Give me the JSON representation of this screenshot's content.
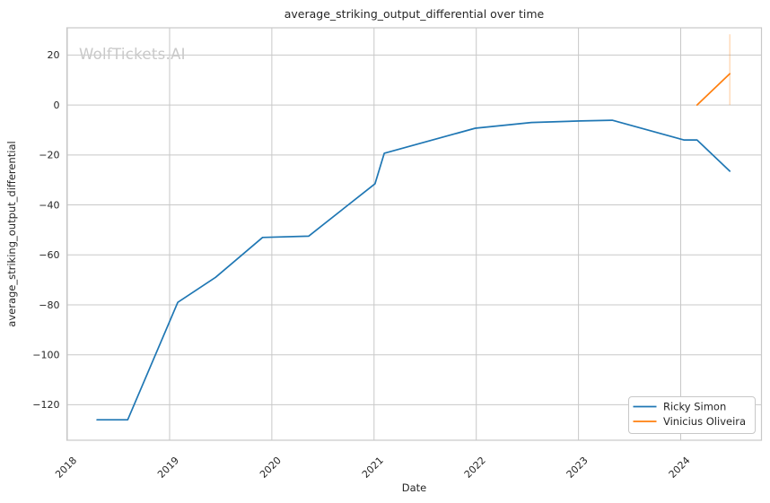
{
  "chart_data": {
    "type": "line",
    "title": "average_striking_output_differential over time",
    "xlabel": "Date",
    "ylabel": "average_striking_output_differential",
    "watermark": "WolfTickets.AI",
    "grid": true,
    "legend_position": "lower right",
    "xlim": [
      2017.995,
      2024.79
    ],
    "ylim": [
      -134.2,
      30.9
    ],
    "x_ticks": [
      2018,
      2019,
      2020,
      2021,
      2022,
      2023,
      2024
    ],
    "x_tick_labels": [
      "2018",
      "2019",
      "2020",
      "2021",
      "2022",
      "2023",
      "2024"
    ],
    "y_ticks": [
      20,
      0,
      -20,
      -40,
      -60,
      -80,
      -100,
      -120
    ],
    "y_tick_labels": [
      "20",
      "0",
      "−20",
      "−40",
      "−60",
      "−80",
      "−100",
      "−120"
    ],
    "series": [
      {
        "name": "Ricky Simon",
        "color": "#1f77b4",
        "x": [
          2018.29,
          2018.59,
          2019.08,
          2019.45,
          2019.91,
          2020.36,
          2021.01,
          2021.1,
          2021.99,
          2022.54,
          2023.02,
          2023.33,
          2024.03,
          2024.16,
          2024.48
        ],
        "y": [
          -126,
          -126,
          -79,
          -69,
          -53,
          -52.5,
          -31.5,
          -19.3,
          -9.3,
          -7.0,
          -6.4,
          -6.1,
          -14,
          -14,
          -26.5
        ]
      },
      {
        "name": "Vinicius Oliveira",
        "color": "#ff7f0e",
        "x": [
          2024.16,
          2024.48
        ],
        "y": [
          0,
          12.5
        ]
      }
    ],
    "error_bar": {
      "series": "Vinicius Oliveira",
      "x": 2024.48,
      "y_from": 0,
      "y_to": 28.3,
      "color": "#ff7f0e",
      "opacity": 0.35
    },
    "colors": {
      "grid": "#c8c8c8",
      "frame": "#c8c8c8",
      "text": "#262626",
      "watermark": "#c9c9c9",
      "background": "#ffffff"
    }
  }
}
